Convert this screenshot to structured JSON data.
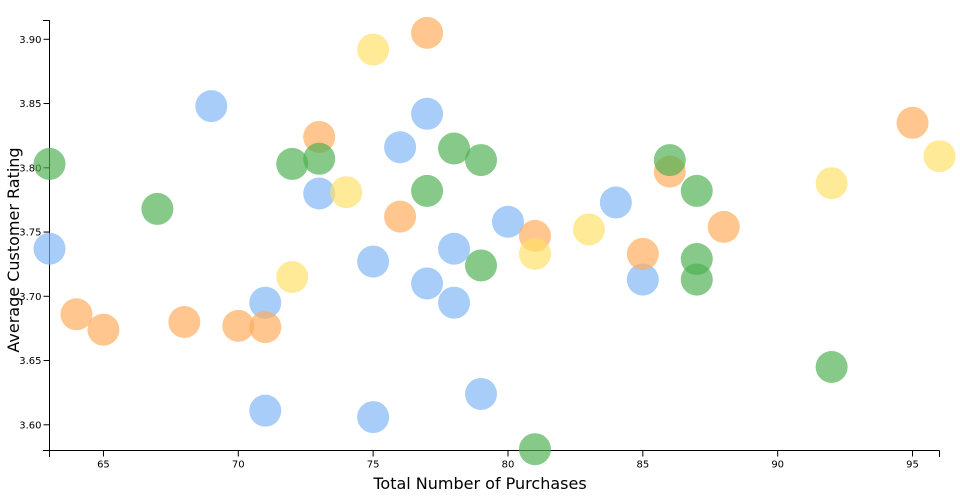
{
  "chart_data": {
    "type": "scatter",
    "title": "",
    "xlabel": "Total Number of Purchases",
    "ylabel": "Average Customer Rating",
    "xlim": [
      63,
      96
    ],
    "ylim": [
      3.58,
      3.915
    ],
    "xticks": [
      65,
      70,
      75,
      80,
      85,
      90,
      95
    ],
    "yticks": [
      3.6,
      3.65,
      3.7,
      3.75,
      3.8,
      3.85,
      3.9
    ],
    "grid": false,
    "colors": {
      "blue": "#7eb6f5",
      "orange": "#ffab5c",
      "green": "#4caf50",
      "yellow": "#ffe066"
    },
    "series": [
      {
        "color": "blue",
        "points": [
          [
            63,
            3.737
          ],
          [
            69,
            3.848
          ],
          [
            71,
            3.695
          ],
          [
            71,
            3.611
          ],
          [
            73,
            3.78
          ],
          [
            75,
            3.727
          ],
          [
            75,
            3.606
          ],
          [
            76,
            3.816
          ],
          [
            77,
            3.842
          ],
          [
            77,
            3.71
          ],
          [
            78,
            3.737
          ],
          [
            78,
            3.695
          ],
          [
            79,
            3.624
          ],
          [
            80,
            3.758
          ],
          [
            84,
            3.773
          ],
          [
            85,
            3.713
          ]
        ]
      },
      {
        "color": "orange",
        "points": [
          [
            64,
            3.686
          ],
          [
            65,
            3.674
          ],
          [
            68,
            3.68
          ],
          [
            70,
            3.677
          ],
          [
            71,
            3.676
          ],
          [
            73,
            3.824
          ],
          [
            76,
            3.762
          ],
          [
            77,
            3.905
          ],
          [
            81,
            3.747
          ],
          [
            85,
            3.733
          ],
          [
            86,
            3.797
          ],
          [
            88,
            3.754
          ],
          [
            95,
            3.835
          ]
        ]
      },
      {
        "color": "green",
        "points": [
          [
            63,
            3.803
          ],
          [
            67,
            3.768
          ],
          [
            72,
            3.803
          ],
          [
            73,
            3.807
          ],
          [
            77,
            3.782
          ],
          [
            78,
            3.815
          ],
          [
            79,
            3.806
          ],
          [
            79,
            3.724
          ],
          [
            81,
            3.581
          ],
          [
            86,
            3.806
          ],
          [
            87,
            3.782
          ],
          [
            87,
            3.729
          ],
          [
            87,
            3.713
          ],
          [
            92,
            3.645
          ]
        ]
      },
      {
        "color": "yellow",
        "points": [
          [
            72,
            3.715
          ],
          [
            74,
            3.781
          ],
          [
            75,
            3.892
          ],
          [
            81,
            3.733
          ],
          [
            83,
            3.752
          ],
          [
            92,
            3.788
          ],
          [
            96,
            3.809
          ]
        ]
      }
    ]
  }
}
